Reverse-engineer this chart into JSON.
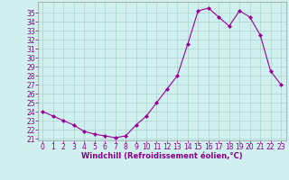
{
  "x": [
    0,
    1,
    2,
    3,
    4,
    5,
    6,
    7,
    8,
    9,
    10,
    11,
    12,
    13,
    14,
    15,
    16,
    17,
    18,
    19,
    20,
    21,
    22,
    23
  ],
  "y": [
    24.0,
    23.5,
    23.0,
    22.5,
    21.8,
    21.5,
    21.3,
    21.1,
    21.3,
    22.5,
    23.5,
    25.0,
    26.5,
    28.0,
    31.5,
    35.2,
    35.5,
    34.5,
    33.5,
    35.2,
    34.5,
    32.5,
    28.5,
    27.0
  ],
  "line_color": "#990099",
  "marker": "D",
  "marker_size": 2,
  "bg_color": "#cff0ee",
  "grid_color": "#aad4cc",
  "xlabel": "Windchill (Refroidissement éolien,°C)",
  "xlabel_color": "#880088",
  "tick_color": "#880088",
  "ylim": [
    21,
    36
  ],
  "xlim": [
    -0.5,
    23.5
  ],
  "yticks": [
    21,
    22,
    23,
    24,
    25,
    26,
    27,
    28,
    29,
    30,
    31,
    32,
    33,
    34,
    35
  ],
  "xticks": [
    0,
    1,
    2,
    3,
    4,
    5,
    6,
    7,
    8,
    9,
    10,
    11,
    12,
    13,
    14,
    15,
    16,
    17,
    18,
    19,
    20,
    21,
    22,
    23
  ],
  "tick_fontsize": 5.5,
  "xlabel_fontsize": 6.0
}
